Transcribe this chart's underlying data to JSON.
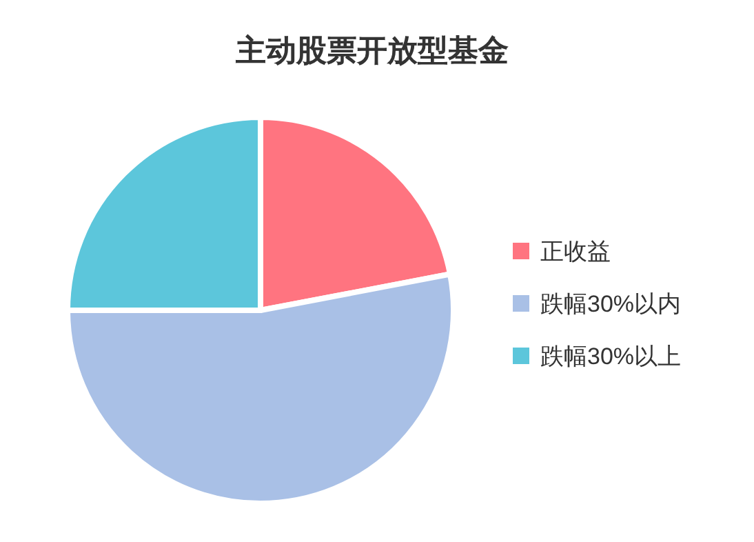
{
  "chart_data": {
    "type": "pie",
    "title": "主动股票开放型基金",
    "categories": [
      "正收益",
      "跌幅30%以内",
      "跌幅30%以上"
    ],
    "values": [
      22,
      53,
      25
    ],
    "colors": [
      "#ff7480",
      "#a9c0e6",
      "#5cc6db"
    ],
    "legend": "right"
  }
}
